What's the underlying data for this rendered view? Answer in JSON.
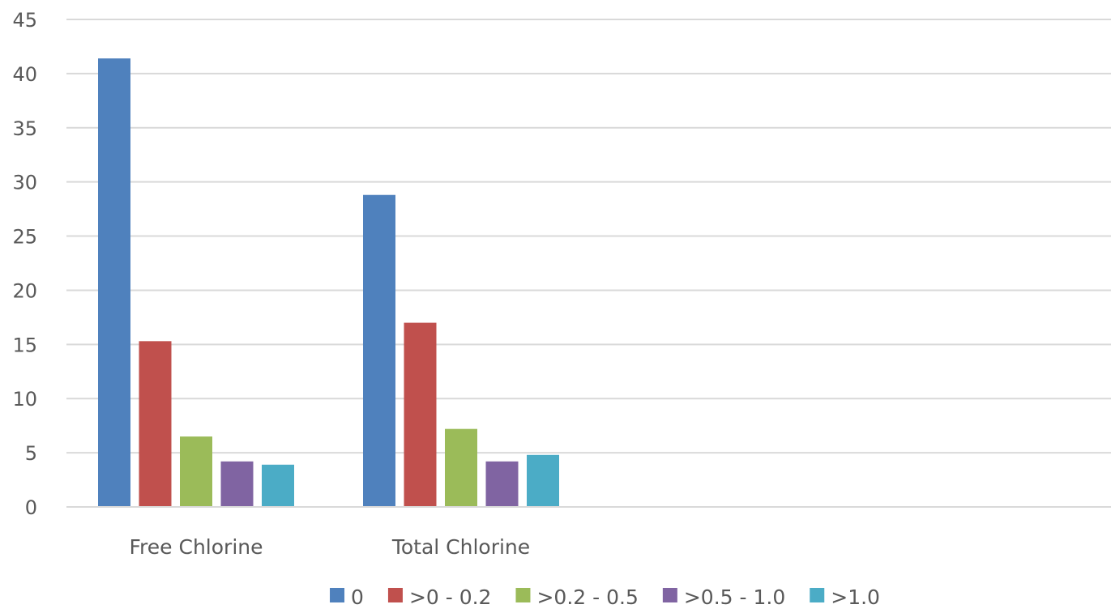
{
  "chart_data": {
    "type": "bar",
    "title": "",
    "xlabel": "",
    "ylabel": "",
    "categories": [
      "Free Chlorine",
      "Total Chlorine"
    ],
    "series": [
      {
        "name": "0",
        "color": "#4f81bd",
        "values": [
          41.4,
          28.8
        ]
      },
      {
        "name": ">0 - 0.2",
        "color": "#c0504d",
        "values": [
          15.3,
          17.0
        ]
      },
      {
        "name": ">0.2 - 0.5",
        "color": "#9bbb59",
        "values": [
          6.5,
          7.2
        ]
      },
      {
        "name": ">0.5 - 1.0",
        "color": "#8064a2",
        "values": [
          4.2,
          4.2
        ]
      },
      {
        "name": ">1.0",
        "color": "#4bacc6",
        "values": [
          3.9,
          4.8
        ]
      }
    ],
    "ylim": [
      0,
      45
    ],
    "yticks": [
      "0",
      "5",
      "10",
      "15",
      "20",
      "25",
      "30",
      "35",
      "40",
      "45"
    ],
    "grid": true,
    "legend_position": "bottom"
  }
}
